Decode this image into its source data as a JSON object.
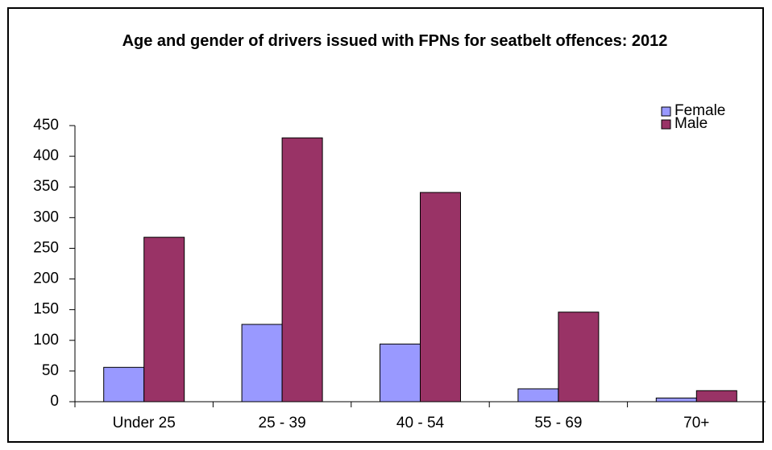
{
  "chart_data": {
    "type": "bar",
    "title": "Age and gender of drivers issued with FPNs for seatbelt offences: 2012",
    "categories": [
      "Under 25",
      "25 - 39",
      "40 - 54",
      "55 - 69",
      "70+"
    ],
    "series": [
      {
        "name": "Female",
        "color": "#9999ff",
        "values": [
          56,
          126,
          94,
          21,
          6
        ]
      },
      {
        "name": "Male",
        "color": "#993366",
        "values": [
          268,
          430,
          341,
          146,
          18
        ]
      }
    ],
    "ylim": [
      0,
      450
    ],
    "yticks": [
      0,
      50,
      100,
      150,
      200,
      250,
      300,
      350,
      400,
      450
    ],
    "grid": false,
    "legend": "top-right"
  }
}
